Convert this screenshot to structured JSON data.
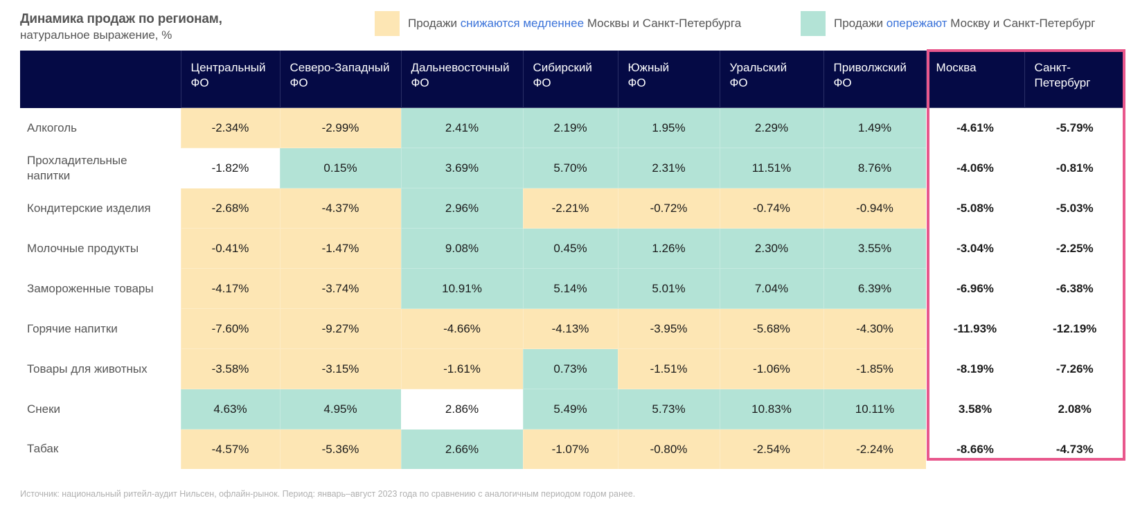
{
  "header": {
    "title": "Динамика продаж по регионам,",
    "subtitle": "натуральное выражение, %"
  },
  "legend": [
    {
      "color": "#fde6b4",
      "prefix": "Продажи ",
      "highlight": "снижаются медленнее",
      "suffix": " Москвы и Санкт-Петербурга"
    },
    {
      "color": "#b3e3d6",
      "prefix": "Продажи ",
      "highlight": "опережают",
      "suffix": " Москву и Санкт-Петербург"
    }
  ],
  "colors": {
    "header_bg": "#050a45",
    "slower_decline": "#fde6b4",
    "outpace": "#b3e3d6",
    "highlight_border": "#e8578c",
    "legend_highlight_text": "#3b73d9"
  },
  "chart_data": {
    "type": "table",
    "title": "Динамика продаж по регионам, натуральное выражение, %",
    "columns": [
      "Центральный ФО",
      "Северо-Западный ФО",
      "Дальневосточный ФО",
      "Сибирский ФО",
      "Южный ФО",
      "Уральский ФО",
      "Приволжский ФО",
      "Москва",
      "Санкт-Петербург"
    ],
    "column_headers": [
      [
        "Центральный",
        "ФО"
      ],
      [
        "Северо-Западный",
        "ФО"
      ],
      [
        "Дальневосточный",
        "ФО"
      ],
      [
        "Сибирский",
        "ФО"
      ],
      [
        "Южный",
        "ФО"
      ],
      [
        "Уральский",
        "ФО"
      ],
      [
        "Приволжский",
        "ФО"
      ],
      [
        "Москва",
        ""
      ],
      [
        "Санкт-",
        "Петербург"
      ]
    ],
    "highlighted_columns": [
      "Москва",
      "Санкт-Петербург"
    ],
    "rows": [
      {
        "label": "Алкоголь",
        "values": [
          "-2.34%",
          "-2.99%",
          "2.41%",
          "2.19%",
          "1.95%",
          "2.29%",
          "1.49%",
          "-4.61%",
          "-5.79%"
        ],
        "fills": [
          "y",
          "y",
          "t",
          "t",
          "t",
          "t",
          "t"
        ]
      },
      {
        "label": "Прохладительные напитки",
        "values": [
          "-1.82%",
          "0.15%",
          "3.69%",
          "5.70%",
          "2.31%",
          "11.51%",
          "8.76%",
          "-4.06%",
          "-0.81%"
        ],
        "fills": [
          "w",
          "t",
          "t",
          "t",
          "t",
          "t",
          "t"
        ]
      },
      {
        "label": "Кондитерские изделия",
        "values": [
          "-2.68%",
          "-4.37%",
          "2.96%",
          "-2.21%",
          "-0.72%",
          "-0.74%",
          "-0.94%",
          "-5.08%",
          "-5.03%"
        ],
        "fills": [
          "y",
          "y",
          "t",
          "y",
          "y",
          "y",
          "y"
        ]
      },
      {
        "label": "Молочные продукты",
        "values": [
          "-0.41%",
          "-1.47%",
          "9.08%",
          "0.45%",
          "1.26%",
          "2.30%",
          "3.55%",
          "-3.04%",
          "-2.25%"
        ],
        "fills": [
          "y",
          "y",
          "t",
          "t",
          "t",
          "t",
          "t"
        ]
      },
      {
        "label": "Замороженные товары",
        "values": [
          "-4.17%",
          "-3.74%",
          "10.91%",
          "5.14%",
          "5.01%",
          "7.04%",
          "6.39%",
          "-6.96%",
          "-6.38%"
        ],
        "fills": [
          "y",
          "y",
          "t",
          "t",
          "t",
          "t",
          "t"
        ]
      },
      {
        "label": "Горячие напитки",
        "values": [
          "-7.60%",
          "-9.27%",
          "-4.66%",
          "-4.13%",
          "-3.95%",
          "-5.68%",
          "-4.30%",
          "-11.93%",
          "-12.19%"
        ],
        "fills": [
          "y",
          "y",
          "y",
          "y",
          "y",
          "y",
          "y"
        ]
      },
      {
        "label": "Товары для животных",
        "values": [
          "-3.58%",
          "-3.15%",
          "-1.61%",
          "0.73%",
          "-1.51%",
          "-1.06%",
          "-1.85%",
          "-8.19%",
          "-7.26%"
        ],
        "fills": [
          "y",
          "y",
          "y",
          "t",
          "y",
          "y",
          "y"
        ]
      },
      {
        "label": "Снеки",
        "values": [
          "4.63%",
          "4.95%",
          "2.86%",
          "5.49%",
          "5.73%",
          "10.83%",
          "10.11%",
          "3.58%",
          "2.08%"
        ],
        "fills": [
          "t",
          "t",
          "w",
          "t",
          "t",
          "t",
          "t"
        ]
      },
      {
        "label": "Табак",
        "values": [
          "-4.57%",
          "-5.36%",
          "2.66%",
          "-1.07%",
          "-0.80%",
          "-2.54%",
          "-2.24%",
          "-8.66%",
          "-4.73%"
        ],
        "fills": [
          "y",
          "y",
          "t",
          "y",
          "y",
          "y",
          "y"
        ]
      }
    ],
    "fill_legend": {
      "y": "Продажи снижаются медленнее Москвы и Санкт-Петербурга",
      "t": "Продажи опережают Москву и Санкт-Петербург",
      "w": "нет выделения"
    }
  },
  "footer": {
    "source": "Источник: национальный ритейл-аудит Нильсен, офлайн-рынок. Период: январь–август 2023 года по сравнению с аналогичным периодом годом ранее."
  }
}
